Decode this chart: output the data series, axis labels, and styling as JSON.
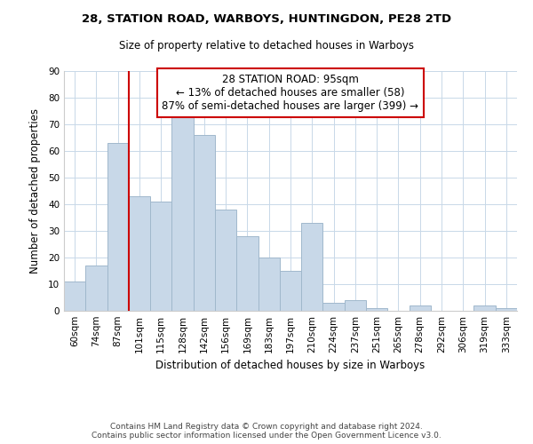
{
  "title_line1": "28, STATION ROAD, WARBOYS, HUNTINGDON, PE28 2TD",
  "title_line2": "Size of property relative to detached houses in Warboys",
  "xlabel": "Distribution of detached houses by size in Warboys",
  "ylabel": "Number of detached properties",
  "categories": [
    "60sqm",
    "74sqm",
    "87sqm",
    "101sqm",
    "115sqm",
    "128sqm",
    "142sqm",
    "156sqm",
    "169sqm",
    "183sqm",
    "197sqm",
    "210sqm",
    "224sqm",
    "237sqm",
    "251sqm",
    "265sqm",
    "278sqm",
    "292sqm",
    "306sqm",
    "319sqm",
    "333sqm"
  ],
  "values": [
    11,
    17,
    63,
    43,
    41,
    74,
    66,
    38,
    28,
    20,
    15,
    33,
    3,
    4,
    1,
    0,
    2,
    0,
    0,
    2,
    1
  ],
  "bar_color": "#c8d8e8",
  "bar_edge_color": "#a0b8cc",
  "property_label": "28 STATION ROAD: 95sqm",
  "annotation_line1": "← 13% of detached houses are smaller (58)",
  "annotation_line2": "87% of semi-detached houses are larger (399) →",
  "vline_x_index": 2.5,
  "vline_color": "#cc0000",
  "ylim": [
    0,
    90
  ],
  "yticks": [
    0,
    10,
    20,
    30,
    40,
    50,
    60,
    70,
    80,
    90
  ],
  "annotation_box_color": "#ffffff",
  "annotation_box_edge_color": "#cc0000",
  "footer_line1": "Contains HM Land Registry data © Crown copyright and database right 2024.",
  "footer_line2": "Contains public sector information licensed under the Open Government Licence v3.0.",
  "background_color": "#ffffff",
  "grid_color": "#c8d8e8",
  "title_fontsize": 9.5,
  "subtitle_fontsize": 8.5,
  "xlabel_fontsize": 8.5,
  "ylabel_fontsize": 8.5,
  "tick_fontsize": 7.5,
  "footer_fontsize": 6.5,
  "annot_fontsize": 8.5
}
